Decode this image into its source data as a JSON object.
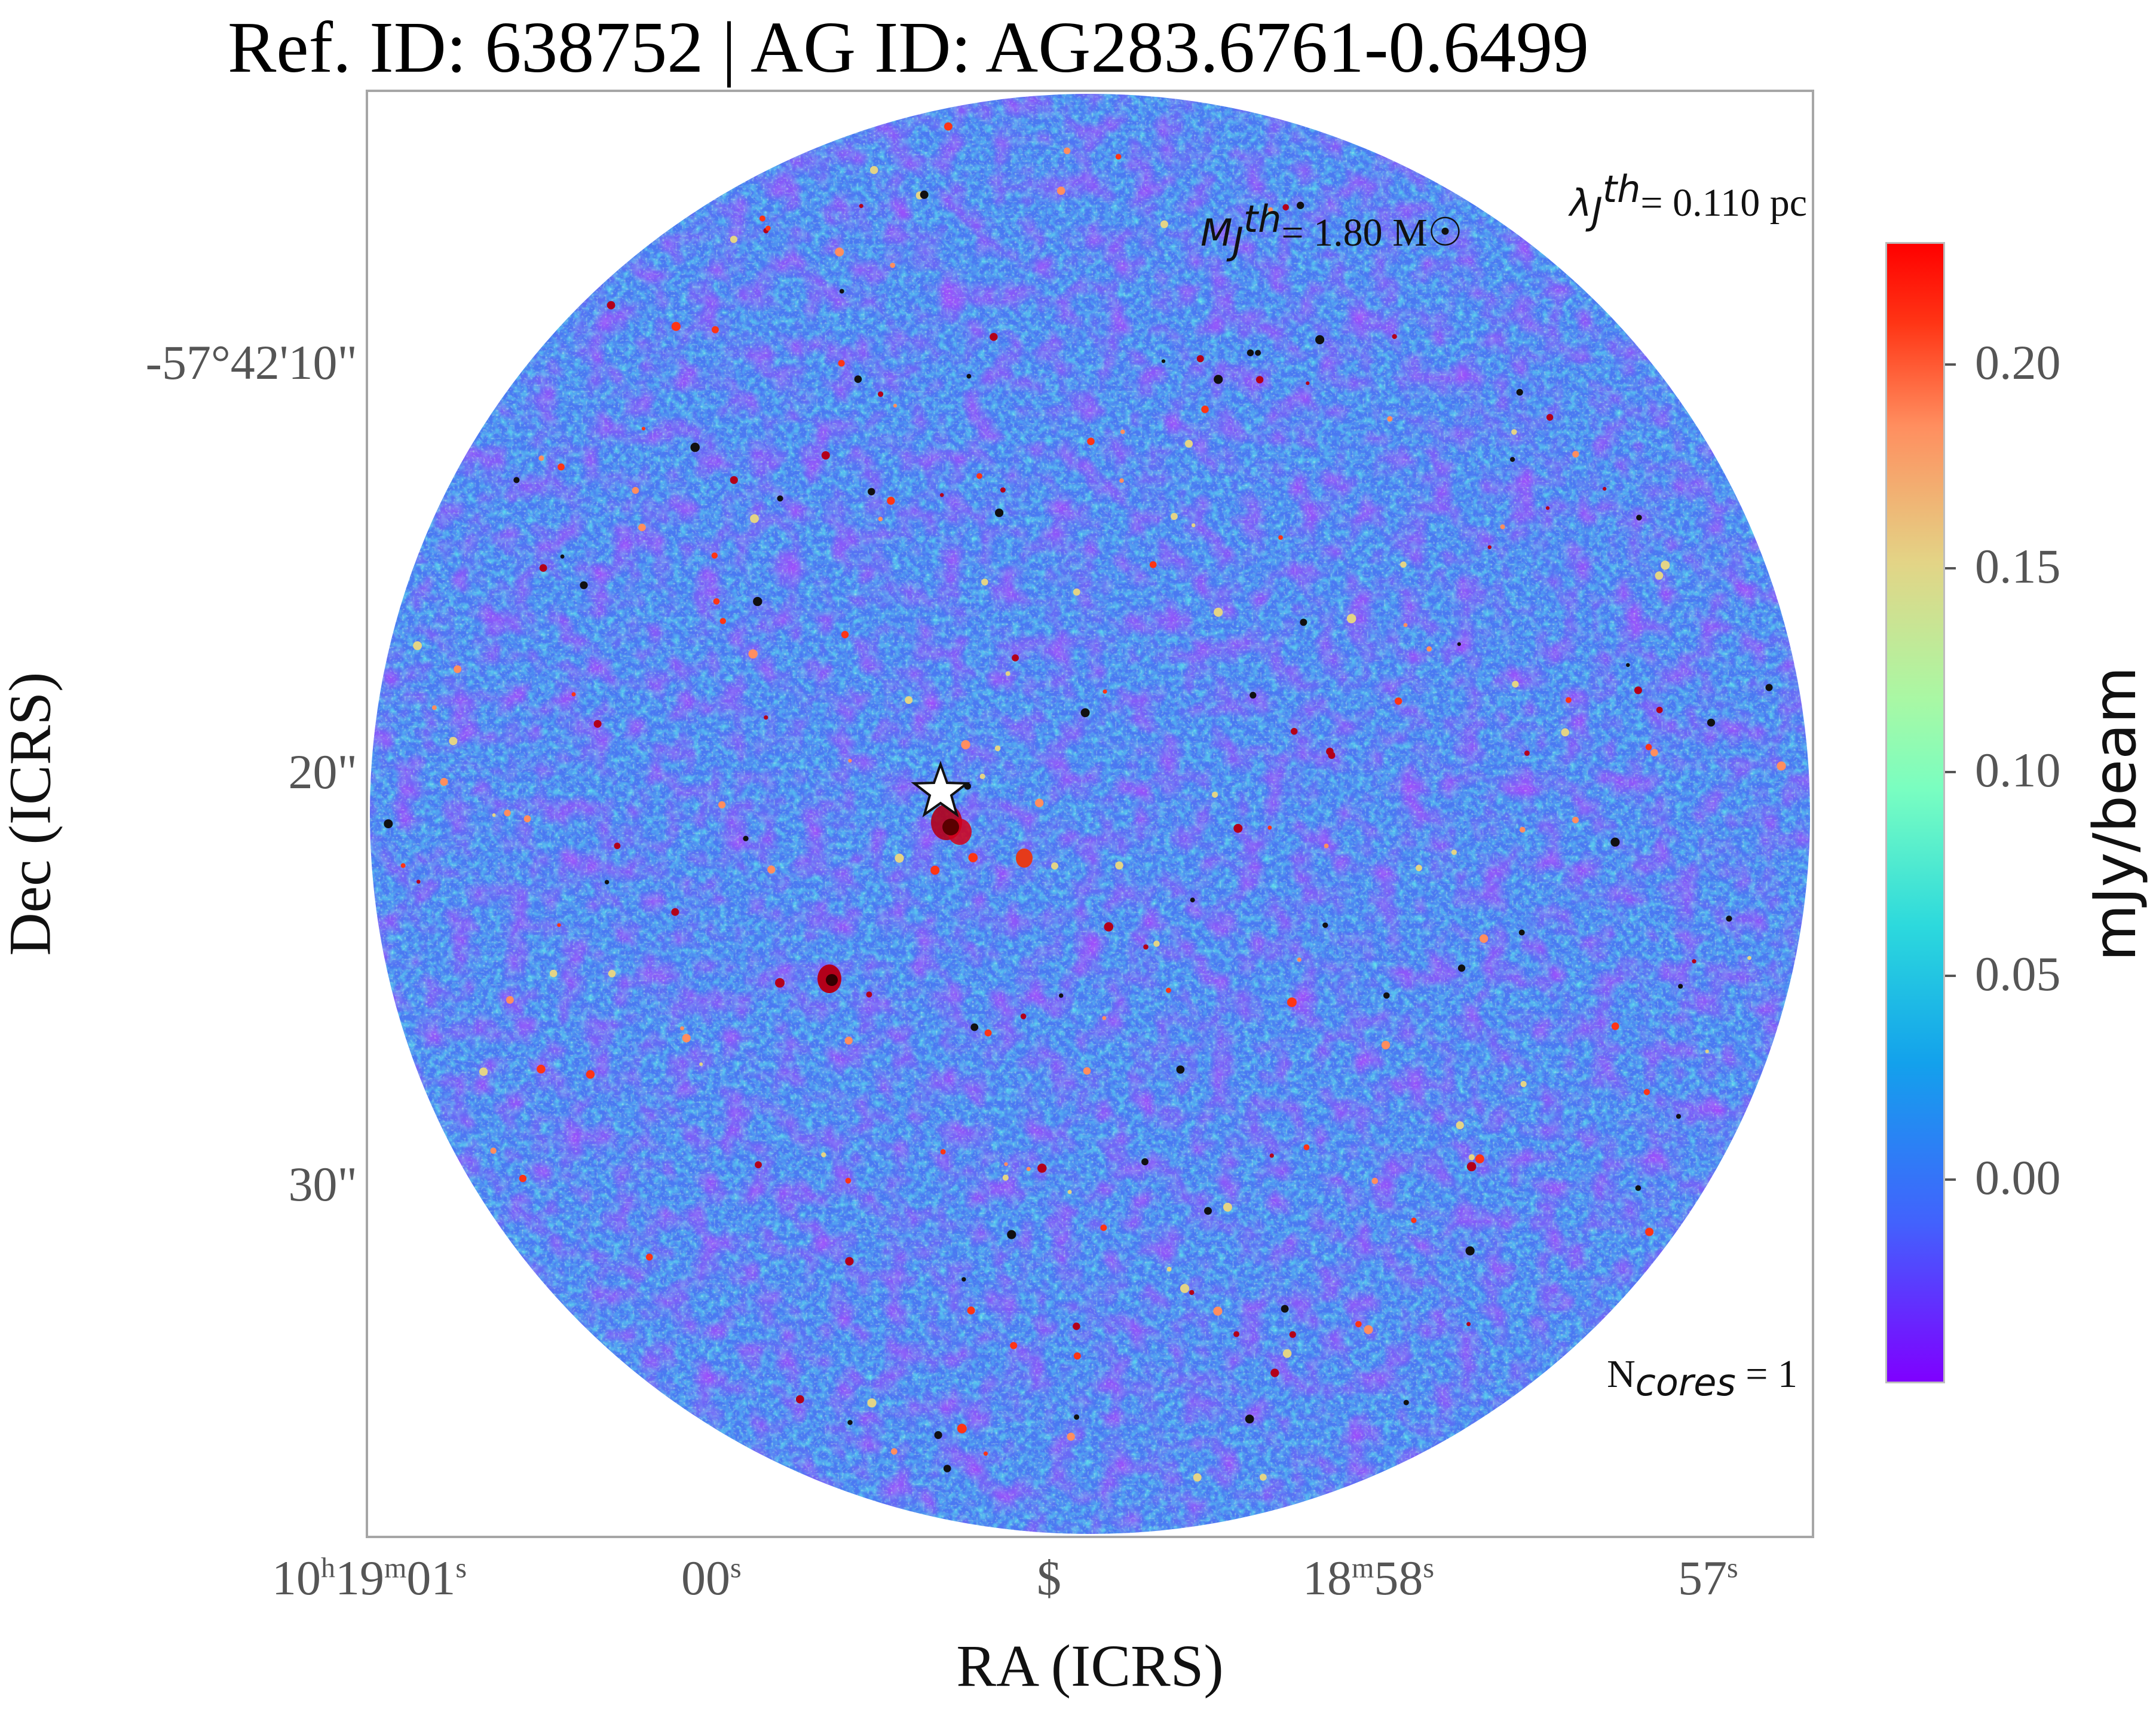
{
  "title": "Ref. ID: 638752 | AG ID: AG283.6761-0.6499",
  "annotations": {
    "mj_symbol": "M",
    "mj_sub": "J",
    "mj_sup": "th",
    "mj_value": "= 1.80 M☉",
    "lj_symbol": "λ",
    "lj_sub": "J",
    "lj_sup": "th",
    "lj_value": "= 0.110 pc",
    "ncores_prefix": "N",
    "ncores_sub": "cores",
    "ncores_value": " = 1"
  },
  "chart_data": {
    "type": "heatmap",
    "title": "Ref. ID: 638752 | AG ID: AG283.6761-0.6499",
    "xlabel": "RA (ICRS)",
    "ylabel": "Dec (ICRS)",
    "x_ticks": [
      {
        "main": "10",
        "sup1": "h",
        "mid": "19",
        "sup2": "m",
        "sec": "01",
        "sup3": "s"
      },
      {
        "sec": "00",
        "sup3": "s"
      },
      {
        "sec": "$"
      },
      {
        "mid": "18",
        "sup2": "m",
        "sec": "58",
        "sup3": "s"
      },
      {
        "sec": "57",
        "sup3": "s"
      }
    ],
    "y_ticks": [
      "-57°42'10\"",
      "20\"",
      "30\""
    ],
    "colorbar": {
      "label": "mJy/beam",
      "colormap": "rainbow",
      "range": [
        -0.05,
        0.23
      ],
      "ticks": [
        "0.20",
        "0.15",
        "0.10",
        "0.05",
        "0.00"
      ],
      "tick_values": [
        0.2,
        0.15,
        0.1,
        0.05,
        0.0
      ]
    },
    "field_shape": "circle",
    "n_cores": 1,
    "core_marker": "star",
    "colors": {
      "low": "#7f00ff",
      "mid": "#2cd9dd",
      "high": "#ff0000",
      "frame": "#a6a6a6"
    }
  }
}
